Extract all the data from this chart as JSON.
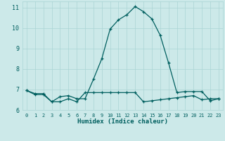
{
  "xlabel": "Humidex (Indice chaleur)",
  "x": [
    0,
    1,
    2,
    3,
    4,
    5,
    6,
    7,
    8,
    9,
    10,
    11,
    12,
    13,
    14,
    15,
    16,
    17,
    18,
    19,
    20,
    21,
    22,
    23
  ],
  "line1": [
    6.95,
    6.75,
    6.75,
    6.4,
    6.65,
    6.7,
    6.55,
    6.55,
    7.5,
    8.5,
    9.95,
    10.4,
    10.65,
    11.05,
    10.8,
    10.45,
    9.65,
    8.3,
    6.85,
    6.9,
    6.9,
    6.9,
    6.45,
    6.55
  ],
  "line2": [
    6.95,
    6.8,
    6.8,
    6.4,
    6.4,
    6.55,
    6.4,
    6.85,
    6.85,
    6.85,
    6.85,
    6.85,
    6.85,
    6.85,
    6.4,
    6.45,
    6.5,
    6.55,
    6.6,
    6.65,
    6.7,
    6.5,
    6.55,
    6.55
  ],
  "ylim": [
    6.0,
    11.3
  ],
  "xlim": [
    -0.5,
    23.5
  ],
  "yticks": [
    6,
    7,
    8,
    9,
    10,
    11
  ],
  "xticks": [
    0,
    1,
    2,
    3,
    4,
    5,
    6,
    7,
    8,
    9,
    10,
    11,
    12,
    13,
    14,
    15,
    16,
    17,
    18,
    19,
    20,
    21,
    22,
    23
  ],
  "line_color": "#005f5f",
  "bg_color": "#cce9e9",
  "grid_color": "#aad4d4"
}
